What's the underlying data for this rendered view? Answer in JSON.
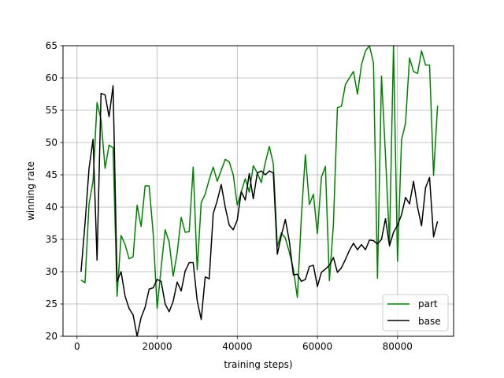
{
  "chart_data": {
    "type": "line",
    "xlabel": "training steps)",
    "ylabel": "winning rate",
    "xlim": [
      -3500,
      94000
    ],
    "ylim": [
      20,
      65
    ],
    "grid": true,
    "legend_position": "bottom-right",
    "xticks": [
      0,
      20000,
      40000,
      60000,
      80000
    ],
    "xtick_labels": [
      "0",
      "20000",
      "40000",
      "60000",
      "80000"
    ],
    "yticks": [
      20,
      25,
      30,
      35,
      40,
      45,
      50,
      55,
      60,
      65
    ],
    "ytick_labels": [
      "20",
      "25",
      "30",
      "35",
      "40",
      "45",
      "50",
      "55",
      "60",
      "65"
    ],
    "series": [
      {
        "name": "part",
        "color": "#008000",
        "x": [
          1000,
          2000,
          3000,
          4000,
          5000,
          6000,
          7000,
          8000,
          9000,
          10000,
          11000,
          12000,
          13000,
          14000,
          15000,
          16000,
          17000,
          18000,
          19000,
          20000,
          21000,
          22000,
          23000,
          24000,
          25000,
          26000,
          27000,
          28000,
          29000,
          30000,
          31000,
          32000,
          33000,
          34000,
          35000,
          36000,
          37000,
          38000,
          39000,
          40000,
          41000,
          42000,
          43000,
          44000,
          45000,
          46000,
          47000,
          48000,
          49000,
          50000,
          51000,
          52000,
          53000,
          54000,
          55000,
          56000,
          57000,
          58000,
          59000,
          60000,
          61000,
          62000,
          63000,
          64000,
          65000,
          66000,
          67000,
          68000,
          69000,
          70000,
          71000,
          72000,
          73000,
          74000,
          75000,
          76000,
          77000,
          78000,
          79000,
          80000,
          81000,
          82000,
          83000,
          84000,
          85000,
          86000,
          87000,
          88000,
          89000,
          90000
        ],
        "y": [
          28.7,
          28.3,
          40.5,
          44.0,
          56.2,
          53.5,
          46.0,
          49.6,
          49.2,
          26.2,
          35.6,
          34.2,
          32.0,
          32.3,
          40.3,
          37.0,
          43.3,
          43.3,
          36.0,
          24.3,
          30.6,
          36.5,
          34.6,
          29.3,
          32.9,
          38.4,
          36.1,
          36.2,
          46.2,
          30.3,
          40.7,
          42.0,
          44.3,
          46.2,
          44.0,
          45.7,
          47.4,
          47.0,
          45.0,
          40.3,
          42.4,
          44.4,
          42.3,
          46.4,
          45.3,
          43.8,
          46.9,
          49.4,
          46.7,
          33.9,
          36.0,
          35.2,
          33.0,
          30.4,
          26.0,
          38.5,
          48.1,
          40.4,
          42.0,
          35.9,
          44.6,
          46.3,
          28.6,
          37.3,
          55.4,
          55.6,
          59.0,
          60.0,
          61.0,
          57.5,
          62.0,
          64.2,
          65.5,
          62.3,
          29.0,
          60.3,
          48.0,
          34.5,
          66.0,
          31.6,
          50.4,
          53.0,
          63.1,
          61.0,
          60.7,
          64.2,
          62.0,
          62.0,
          44.9,
          55.7
        ]
      },
      {
        "name": "base",
        "color": "#000000",
        "x": [
          1000,
          2000,
          3000,
          4000,
          5000,
          6000,
          7000,
          8000,
          9000,
          10000,
          11000,
          12000,
          13000,
          14000,
          15000,
          16000,
          17000,
          18000,
          19000,
          20000,
          21000,
          22000,
          23000,
          24000,
          25000,
          26000,
          27000,
          28000,
          29000,
          30000,
          31000,
          32000,
          33000,
          34000,
          35000,
          36000,
          37000,
          38000,
          39000,
          40000,
          41000,
          42000,
          43000,
          44000,
          45000,
          46000,
          47000,
          48000,
          49000,
          50000,
          51000,
          52000,
          53000,
          54000,
          55000,
          56000,
          57000,
          58000,
          59000,
          60000,
          61000,
          62000,
          63000,
          64000,
          65000,
          66000,
          67000,
          68000,
          69000,
          70000,
          71000,
          72000,
          73000,
          74000,
          75000,
          76000,
          77000,
          78000,
          79000,
          80000,
          81000,
          82000,
          83000,
          84000,
          85000,
          86000,
          87000,
          88000,
          89000,
          90000
        ],
        "y": [
          30.0,
          37.5,
          46.0,
          50.5,
          31.8,
          57.6,
          57.4,
          54.0,
          58.8,
          28.5,
          30.0,
          26.2,
          24.3,
          23.3,
          20.0,
          22.9,
          24.5,
          27.3,
          27.5,
          28.8,
          28.5,
          25.0,
          23.8,
          25.4,
          28.4,
          27.0,
          30.1,
          31.4,
          31.4,
          25.5,
          22.6,
          29.2,
          28.9,
          39.0,
          41.0,
          43.5,
          40.0,
          37.2,
          36.5,
          38.0,
          42.4,
          41.1,
          45.2,
          41.3,
          45.3,
          45.6,
          45.0,
          45.6,
          45.3,
          32.7,
          35.6,
          38.1,
          34.7,
          29.5,
          29.6,
          28.5,
          28.8,
          30.8,
          31.0,
          27.7,
          29.9,
          30.4,
          31.0,
          32.2,
          29.9,
          30.6,
          31.9,
          33.3,
          34.4,
          33.4,
          34.2,
          33.4,
          34.9,
          34.8,
          34.3,
          35.0,
          38.2,
          34.0,
          36.1,
          37.2,
          38.8,
          41.5,
          40.5,
          44.0,
          40.0,
          37.1,
          43.0,
          44.6,
          35.4,
          37.8
        ]
      }
    ]
  }
}
